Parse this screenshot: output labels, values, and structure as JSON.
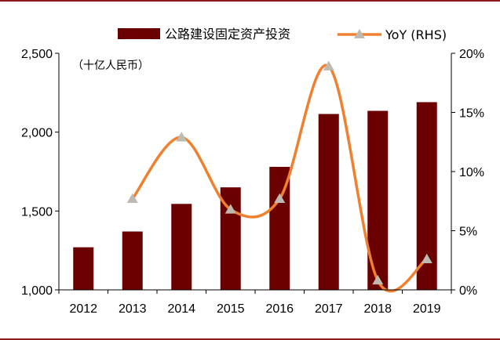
{
  "chart_data": {
    "type": "bar",
    "categories": [
      "2012",
      "2013",
      "2014",
      "2015",
      "2016",
      "2017",
      "2018",
      "2019"
    ],
    "series": [
      {
        "name": "公路建设固定资产投资",
        "type": "bar",
        "axis": "left",
        "color": "#6b0000",
        "values": [
          1270,
          1370,
          1545,
          1650,
          1780,
          2115,
          2135,
          2190
        ]
      },
      {
        "name": "YoY (RHS)",
        "type": "line",
        "axis": "right",
        "color": "#f08030",
        "marker_color": "#bfbab0",
        "values": [
          null,
          7.7,
          12.9,
          6.8,
          7.7,
          18.9,
          0.8,
          2.6
        ]
      }
    ],
    "unit_label": "（十亿人民币）",
    "y_left": {
      "min": 1000,
      "max": 2500,
      "ticks": [
        "1,000",
        "1,500",
        "2,000",
        "2,500"
      ],
      "tick_values": [
        1000,
        1500,
        2000,
        2500
      ]
    },
    "y_right": {
      "min": 0,
      "max": 20,
      "ticks": [
        "0%",
        "5%",
        "10%",
        "15%",
        "20%"
      ],
      "tick_values": [
        0,
        5,
        10,
        15,
        20
      ]
    },
    "grid": false,
    "legend_position": "top-right"
  },
  "colors": {
    "frame": "#8b1a1a",
    "bar": "#6b0000",
    "line": "#f08030",
    "marker": "#bfbab0",
    "axis": "#000000"
  }
}
